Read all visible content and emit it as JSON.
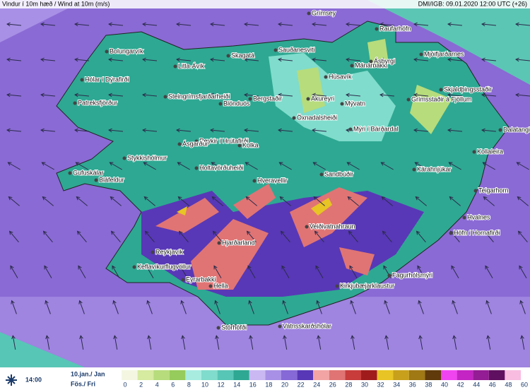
{
  "header": {
    "title": "Vindur í 10m hæð / Wind at 10m (m/s)",
    "credit": "DMI/IGB: 09.01.2020 12:00 UTC (+26)"
  },
  "places": [
    "Grímsey",
    "Raufarhöfn",
    "Bolungarvík",
    "Sauðanesviti",
    "Skagatá",
    "Mánárbakki",
    "Mjóifjarðarnes",
    "Ásbyrgi",
    "Litla-Ávík",
    "Húsavík",
    "Hólar í Dýrafirði",
    "Steingrímsfjarðarheiði",
    "Bergstaðir",
    "Akureyri",
    "Skjaldþingsstaðir",
    "Grímsstaðir á Fjöllum",
    "Patreksfjörður",
    "Blönduós",
    "Mývatn",
    "Öxnadalsheiði",
    "Mýri í Bárðardal",
    "Dalatangi",
    "Reykir í Hrútafirði",
    "Ásgarður",
    "Kolka",
    "Stykkishólmur",
    "Kollaleira",
    "Holtavörðuheiði",
    "Kárahnjúkar",
    "Gufuskálar",
    "Bláfeldur",
    "Hveravellir",
    "Sandbúðir",
    "Teigarhorn",
    "Veiðivatnahraun",
    "Hvalnes",
    "Höfn í Hornafirði",
    "Hjarðarland",
    "Reykjavík",
    "Keflavíkurflugvöllur",
    "Fagurhólsmýri",
    "Eyrarbakki",
    "Hella",
    "Kirkjubæjarklaustur",
    "Stórhöfði",
    "Vatnsskarðshólar"
  ],
  "legend": {
    "ticks": [
      0,
      2,
      4,
      6,
      8,
      10,
      12,
      14,
      16,
      18,
      20,
      22,
      24,
      26,
      28,
      30,
      32,
      34,
      36,
      38,
      40,
      42,
      44,
      46,
      48,
      60
    ],
    "colors": [
      "#f4f6e2",
      "#d6eaa0",
      "#b6dc7c",
      "#96cc5c",
      "#a8ece0",
      "#80dccc",
      "#58c6b6",
      "#2ea892",
      "#cab8f2",
      "#a890e6",
      "#8668d6",
      "#5838b6",
      "#f2a4a4",
      "#e07474",
      "#c83c3c",
      "#a01c1c",
      "#e8c424",
      "#c8a01c",
      "#a07814",
      "#603a0a",
      "#f044f0",
      "#c424c4",
      "#941c94",
      "#601060",
      "#f8bce0"
    ]
  },
  "footer": {
    "time": "14:00",
    "date": "10.jan./ Jan",
    "day": "Fös./ Fri"
  }
}
